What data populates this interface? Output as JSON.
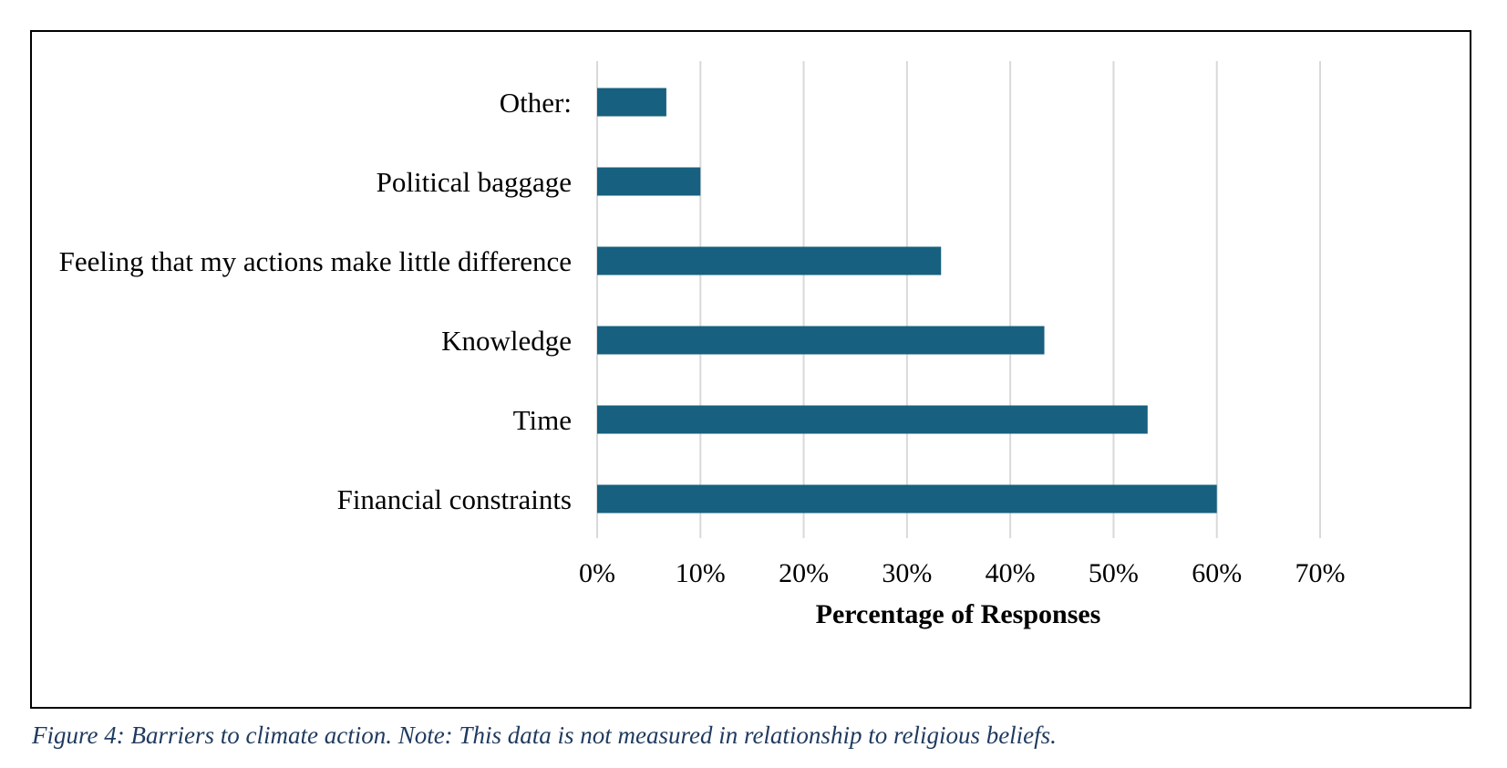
{
  "caption": "Figure 4: Barriers to climate action. Note: This data is not measured in relationship to religious beliefs.",
  "colors": {
    "bar": "#17607f",
    "grid": "#d9d9d9",
    "caption": "#1f3a5f"
  },
  "chart_data": {
    "type": "bar",
    "orientation": "horizontal",
    "categories": [
      "Other:",
      "Political baggage",
      "Feeling that my actions make little difference",
      "Knowledge",
      "Time",
      "Financial constraints"
    ],
    "values": [
      6.7,
      10,
      33.3,
      43.3,
      53.3,
      60
    ],
    "xlim": [
      0,
      70
    ],
    "xticks": [
      0,
      10,
      20,
      30,
      40,
      50,
      60,
      70
    ],
    "xtick_labels": [
      "0%",
      "10%",
      "20%",
      "30%",
      "40%",
      "50%",
      "60%",
      "70%"
    ],
    "xlabel": "Percentage of Responses",
    "ylabel": "",
    "grid": "vertical",
    "legend": "none"
  }
}
